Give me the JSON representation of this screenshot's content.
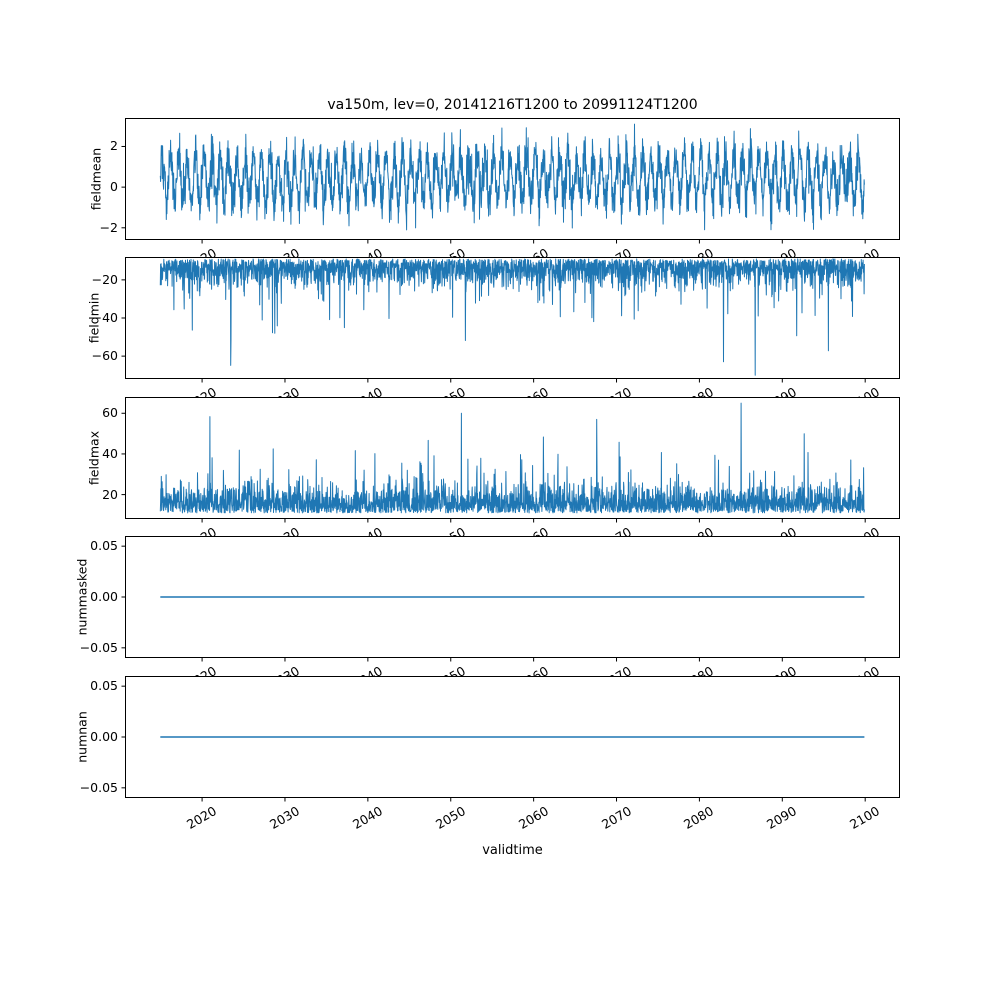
{
  "chart_data": {
    "type": "line",
    "title": "va150m, lev=0, 20141216T1200 to 20991124T1200",
    "xlabel": "validtime",
    "line_color": "#1f77b4",
    "axis_color": "#000000",
    "x_lim": [
      2010.7,
      2104.2
    ],
    "x_data_range": [
      2014.96,
      2099.9
    ],
    "x_ticks": [
      2020,
      2030,
      2040,
      2050,
      2060,
      2070,
      2080,
      2090,
      2100
    ],
    "x_tick_rotation_deg": 30,
    "legend": "none",
    "grid": false,
    "subplots": [
      {
        "ylabel": "fieldmean",
        "ylim": [
          -2.6,
          3.4
        ],
        "yticks": [
          2,
          0,
          -2
        ],
        "ytick_labels": [
          "2",
          "0",
          "−2"
        ],
        "series": {
          "kind": "seasonal_noise",
          "seed": 101,
          "n": 2800,
          "base": 0.45,
          "seasonal_amp": 1.1,
          "cycles": 85,
          "noise_sd": 0.55,
          "approx_range": [
            -2.3,
            3.2
          ]
        }
      },
      {
        "ylabel": "fieldmin",
        "ylim": [
          -72,
          -8
        ],
        "yticks": [
          -20,
          -40,
          -60
        ],
        "ytick_labels": [
          "−20",
          "−40",
          "−60"
        ],
        "series": {
          "kind": "half_noise",
          "seed": 202,
          "n": 2800,
          "base": -9,
          "direction": -1,
          "sd": 7,
          "spikes": [
            {
              "prob": 0.02,
              "min": 8,
              "max": 26
            },
            {
              "prob": 0.0035,
              "min": 28,
              "max": 48
            }
          ],
          "forced": [
            {
              "t": 0.8,
              "value": -63
            },
            {
              "t": 0.845,
              "value": -70
            }
          ],
          "approx_range": [
            -70,
            -8
          ]
        }
      },
      {
        "ylabel": "fieldmax",
        "ylim": [
          8,
          68
        ],
        "yticks": [
          60,
          40,
          20
        ],
        "ytick_labels": [
          "60",
          "40",
          "20"
        ],
        "series": {
          "kind": "half_noise",
          "seed": 303,
          "n": 2800,
          "base": 11,
          "direction": 1,
          "sd": 6.5,
          "spikes": [
            {
              "prob": 0.02,
              "min": 8,
              "max": 22
            },
            {
              "prob": 0.004,
              "min": 26,
              "max": 44
            }
          ],
          "forced": [
            {
              "t": 0.62,
              "value": 57
            },
            {
              "t": 0.825,
              "value": 65
            }
          ],
          "approx_range": [
            10,
            65
          ]
        }
      },
      {
        "ylabel": "nummasked",
        "ylim": [
          -0.06,
          0.06
        ],
        "yticks": [
          0.05,
          0,
          -0.05
        ],
        "ytick_labels": [
          "0.05",
          "0.00",
          "−0.05"
        ],
        "series": {
          "kind": "flat",
          "value": 0
        }
      },
      {
        "ylabel": "numnan",
        "ylim": [
          -0.06,
          0.06
        ],
        "yticks": [
          0.05,
          0,
          -0.05
        ],
        "ytick_labels": [
          "0.05",
          "0.00",
          "−0.05"
        ],
        "series": {
          "kind": "flat",
          "value": 0
        }
      }
    ]
  }
}
